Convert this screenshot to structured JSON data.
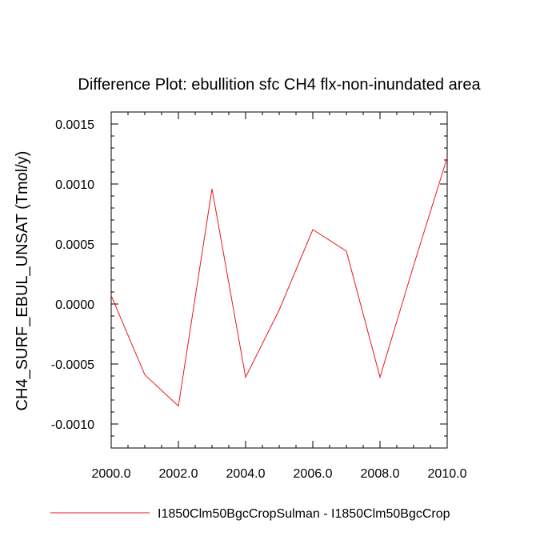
{
  "chart_data": {
    "type": "line",
    "title": "Difference Plot: ebullition sfc CH4 flx-non-inundated area",
    "ylabel": "CH4_SURF_EBUL_UNSAT  (Tmol/y)",
    "xlabel": "",
    "xlim": [
      2000,
      2010
    ],
    "ylim": [
      -0.0012,
      0.0016
    ],
    "x_ticks": [
      {
        "value": 2000,
        "label": "2000.0"
      },
      {
        "value": 2002,
        "label": "2002.0"
      },
      {
        "value": 2004,
        "label": "2004.0"
      },
      {
        "value": 2006,
        "label": "2006.0"
      },
      {
        "value": 2008,
        "label": "2008.0"
      },
      {
        "value": 2010,
        "label": "2010.0"
      }
    ],
    "y_ticks": [
      {
        "value": 0.0015,
        "label": "0.0015"
      },
      {
        "value": 0.001,
        "label": "0.0010"
      },
      {
        "value": 0.0005,
        "label": "0.0005"
      },
      {
        "value": 0.0,
        "label": "0.0000"
      },
      {
        "value": -0.0005,
        "label": "-0.0005"
      },
      {
        "value": -0.001,
        "label": "-0.0010"
      }
    ],
    "grid": false,
    "legend_position": "bottom",
    "series": [
      {
        "name": "I1850Clm50BgcCropSulman - I1850Clm50BgcCrop",
        "color": "#e8191c",
        "x": [
          2000,
          2001,
          2002,
          2003,
          2004,
          2005,
          2006,
          2007,
          2008,
          2009,
          2010
        ],
        "y": [
          7e-05,
          -0.00059,
          -0.00085,
          0.00096,
          -0.00061,
          -5e-05,
          0.00062,
          0.00044,
          -0.00061,
          0.00032,
          0.00122
        ]
      }
    ]
  }
}
